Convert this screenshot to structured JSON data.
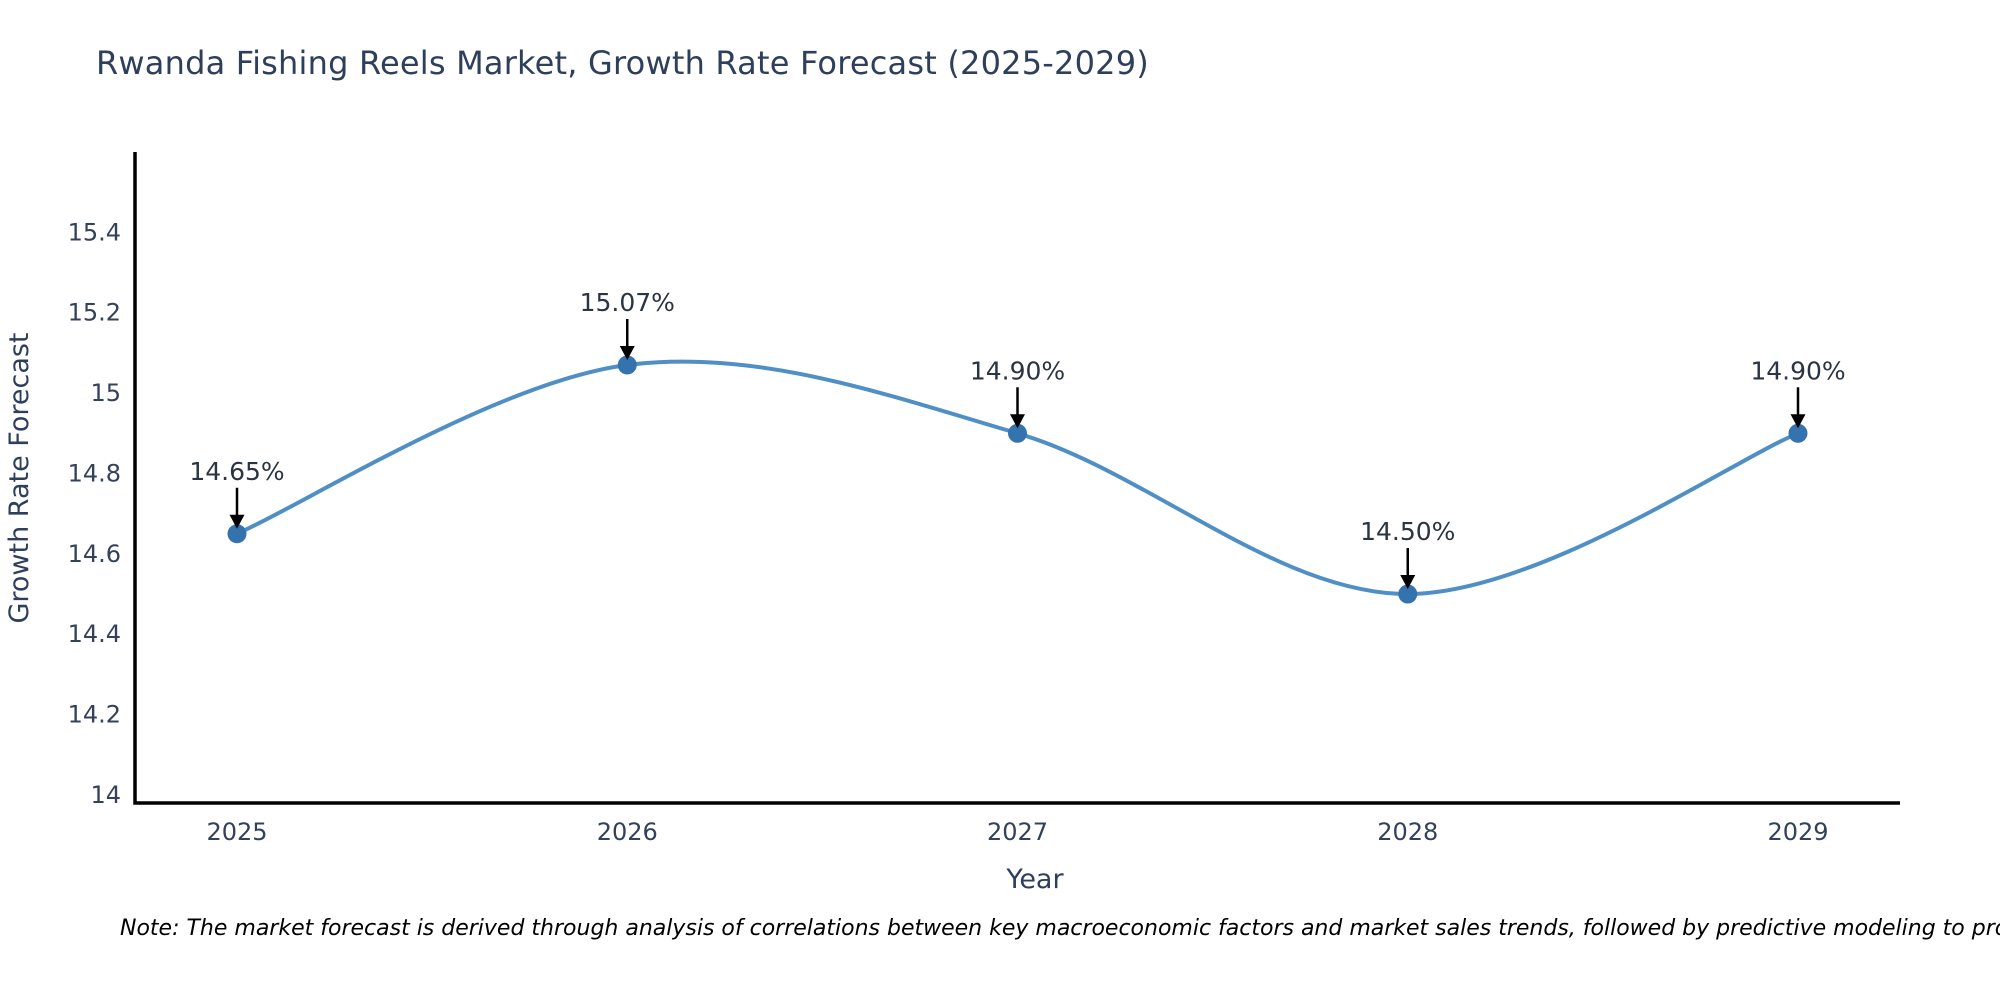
{
  "page": {
    "title": "Rwanda Fishing Reels Market, Growth Rate Forecast (2025-2029)",
    "note": "Note: The market forecast is derived through analysis of correlations between key macroeconomic factors and market sales trends, followed by predictive modeling to project future sal"
  },
  "chart_data": {
    "type": "line",
    "title": "Rwanda Fishing Reels Market, Growth Rate Forecast (2025-2029)",
    "xlabel": "Year",
    "ylabel": "Growth Rate Forecast",
    "x": [
      2025,
      2026,
      2027,
      2028,
      2029
    ],
    "y": [
      14.65,
      15.07,
      14.9,
      14.5,
      14.9
    ],
    "point_labels": [
      "14.65%",
      "15.07%",
      "14.90%",
      "14.50%",
      "14.90%"
    ],
    "xtick_labels": [
      "2025",
      "2026",
      "2027",
      "2028",
      "2029"
    ],
    "yticks": [
      14,
      14.2,
      14.4,
      14.6,
      14.8,
      15,
      15.2,
      15.4
    ],
    "ytick_labels": [
      "14",
      "14.2",
      "14.4",
      "14.6",
      "14.8",
      "15",
      "15.2",
      "15.4"
    ],
    "ylim": [
      13.98,
      15.6
    ],
    "line_shape": "spline",
    "grid": false,
    "legend": "none",
    "colors": {
      "line": "#4f8fc5",
      "marker": "#3473ae",
      "axis": "#000000",
      "text": "#2e3f5c",
      "annotation_arrow": "#000000"
    }
  }
}
